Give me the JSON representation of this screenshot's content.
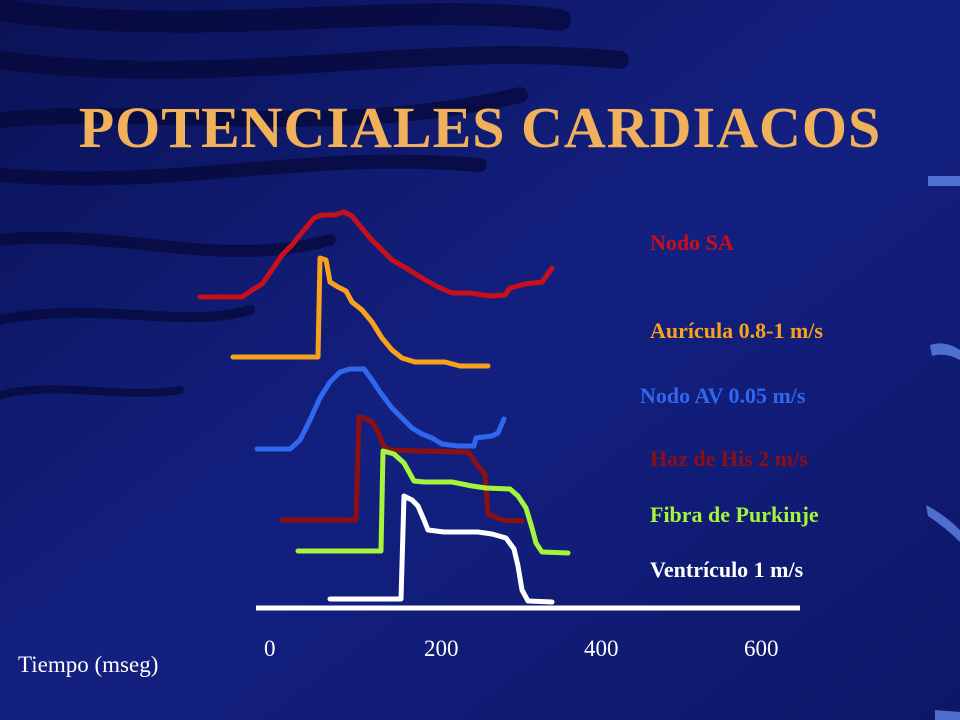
{
  "title": "POTENCIALES CARDIACOS",
  "traces": [
    {
      "label": "Nodo SA",
      "color": "#c8101a"
    },
    {
      "label": "Aurícula 0.8-1 m/s",
      "color": "#f8a21c"
    },
    {
      "label": "Nodo AV 0.05 m/s",
      "color": "#2f67f0"
    },
    {
      "label": "Haz de His  2 m/s",
      "color": "#8c0f12"
    },
    {
      "label": "Fibra de Purkinje",
      "color": "#a6f53a"
    },
    {
      "label": "Ventrículo  1 m/s",
      "color": "#ffffff"
    }
  ],
  "axis": {
    "label": "Tiempo (mseg)",
    "ticks": [
      "0",
      "200",
      "400",
      "600"
    ]
  },
  "colors": {
    "background": "#101a6e",
    "title": "#f0b15a",
    "axis": "#ffffff"
  }
}
